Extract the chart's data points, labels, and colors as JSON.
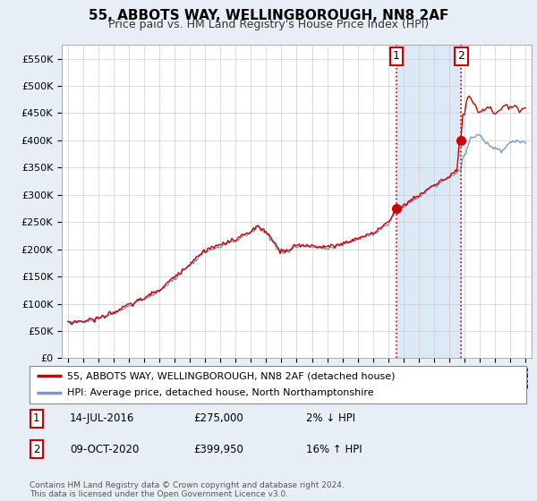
{
  "title": "55, ABBOTS WAY, WELLINGBOROUGH, NN8 2AF",
  "subtitle": "Price paid vs. HM Land Registry's House Price Index (HPI)",
  "legend_line1": "55, ABBOTS WAY, WELLINGBOROUGH, NN8 2AF (detached house)",
  "legend_line2": "HPI: Average price, detached house, North Northamptonshire",
  "footnote": "Contains HM Land Registry data © Crown copyright and database right 2024.\nThis data is licensed under the Open Government Licence v3.0.",
  "sale1_label": "1",
  "sale1_date": "14-JUL-2016",
  "sale1_price": "£275,000",
  "sale1_hpi": "2% ↓ HPI",
  "sale1_year": 2016.54,
  "sale1_value": 275000,
  "sale2_label": "2",
  "sale2_date": "09-OCT-2020",
  "sale2_price": "£399,950",
  "sale2_hpi": "16% ↑ HPI",
  "sale2_year": 2020.77,
  "sale2_value": 399950,
  "ylim": [
    0,
    575000
  ],
  "yticks": [
    0,
    50000,
    100000,
    150000,
    200000,
    250000,
    300000,
    350000,
    400000,
    450000,
    500000,
    550000
  ],
  "ytick_labels": [
    "£0",
    "£50K",
    "£100K",
    "£150K",
    "£200K",
    "£250K",
    "£300K",
    "£350K",
    "£400K",
    "£450K",
    "£500K",
    "£550K"
  ],
  "line_red": "#cc0000",
  "line_blue": "#7799cc",
  "shade_color": "#dce8f5",
  "bg_color": "#e8eef5",
  "plot_bg": "#ffffff",
  "grid_color": "#cccccc",
  "vline_color": "#cc0000",
  "box_color": "#cc0000"
}
